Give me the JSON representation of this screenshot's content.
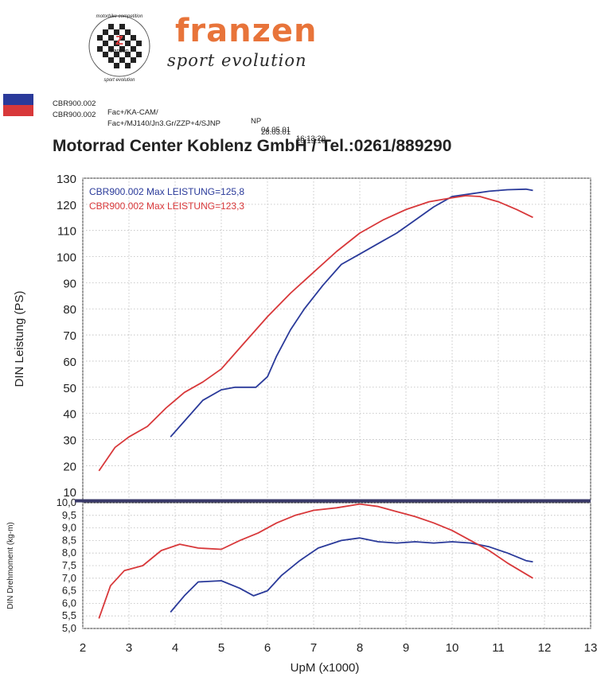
{
  "header": {
    "brand": "franzen",
    "brand_sub": "sport evolution",
    "badge_top": "motorbike competition",
    "badge_bottom": "sport evolution",
    "badge_letter": "Z",
    "badge_name": "franzen"
  },
  "runs": [
    {
      "name": "CBR900.002",
      "desc": "Fac+/KA-CAM/",
      "mode": "NP",
      "date": "04.05.01",
      "time": "16:13:20",
      "color": "#2a3a9a"
    },
    {
      "name": "CBR900.002",
      "desc": "Fac+/MJ140/Jn3.Gr/ZZP+4/SJNP",
      "mode": "",
      "date": "28.03.01",
      "time": "20:19:16",
      "color": "#d8383a"
    }
  ],
  "title": "Motorrad Center Koblenz GmbH / Tel.:0261/889290",
  "chart_data": [
    {
      "type": "line",
      "ylabel": "DIN Leistung (PS)",
      "ylim": [
        7,
        130
      ],
      "xlim": [
        2,
        13
      ],
      "yticks": [
        10,
        20,
        30,
        40,
        50,
        60,
        70,
        80,
        90,
        100,
        110,
        120,
        130
      ],
      "annotations": [
        "CBR900.002  Max LEISTUNG=125,8",
        "CBR900.002  Max LEISTUNG=123,3"
      ],
      "series": [
        {
          "name": "CBR900.002",
          "color": "#2a3a9a",
          "x": [
            3.9,
            4.2,
            4.6,
            5.0,
            5.3,
            5.6,
            5.75,
            6.0,
            6.2,
            6.5,
            6.8,
            7.2,
            7.6,
            8.0,
            8.5,
            8.8,
            9.2,
            9.6,
            10.0,
            10.4,
            10.8,
            11.2,
            11.6,
            11.75
          ],
          "y": [
            31,
            37,
            45,
            49,
            50,
            50,
            50,
            54,
            62,
            72,
            80,
            89,
            97,
            101,
            106,
            109,
            114,
            119,
            123,
            124,
            125,
            125.6,
            125.8,
            125.3
          ]
        },
        {
          "name": "CBR900.002",
          "color": "#d8383a",
          "x": [
            2.35,
            2.7,
            3.0,
            3.4,
            3.8,
            4.2,
            4.6,
            5.0,
            5.5,
            6.0,
            6.5,
            7.0,
            7.5,
            8.0,
            8.5,
            9.0,
            9.5,
            10.0,
            10.3,
            10.6,
            11.0,
            11.4,
            11.75
          ],
          "y": [
            18,
            27,
            31,
            35,
            42,
            48,
            52,
            57,
            67,
            77,
            86,
            94,
            102,
            109,
            114,
            118,
            121,
            122.5,
            123.3,
            123,
            121,
            118,
            115
          ]
        }
      ]
    },
    {
      "type": "line",
      "ylabel": "DIN Drehmoment (kg-m)",
      "ylim": [
        5,
        10
      ],
      "xlim": [
        2,
        13
      ],
      "yticks": [
        "5,0",
        "5,5",
        "6,0",
        "6,5",
        "7,0",
        "7,5",
        "8,0",
        "8,5",
        "9,0",
        "9,5",
        "10,0"
      ],
      "xticks": [
        "2",
        "3",
        "4",
        "5",
        "6",
        "7",
        "8",
        "9",
        "10",
        "11",
        "12",
        "13"
      ],
      "xlabel": "UpM (x1000)",
      "series": [
        {
          "name": "CBR900.002",
          "color": "#2a3a9a",
          "x": [
            3.9,
            4.2,
            4.5,
            5.0,
            5.4,
            5.7,
            6.0,
            6.3,
            6.7,
            7.1,
            7.6,
            8.0,
            8.4,
            8.8,
            9.2,
            9.6,
            10.0,
            10.4,
            10.8,
            11.2,
            11.6,
            11.75
          ],
          "y": [
            5.65,
            6.3,
            6.85,
            6.9,
            6.6,
            6.3,
            6.5,
            7.1,
            7.7,
            8.2,
            8.5,
            8.6,
            8.45,
            8.4,
            8.45,
            8.4,
            8.45,
            8.4,
            8.25,
            8.0,
            7.7,
            7.65
          ]
        },
        {
          "name": "CBR900.002",
          "color": "#d8383a",
          "x": [
            2.35,
            2.6,
            2.9,
            3.3,
            3.7,
            4.1,
            4.5,
            5.0,
            5.4,
            5.8,
            6.2,
            6.6,
            7.0,
            7.5,
            8.0,
            8.4,
            8.8,
            9.2,
            9.6,
            10.0,
            10.4,
            10.8,
            11.2,
            11.75
          ],
          "y": [
            5.4,
            6.7,
            7.3,
            7.5,
            8.1,
            8.35,
            8.2,
            8.15,
            8.5,
            8.8,
            9.2,
            9.5,
            9.7,
            9.8,
            9.95,
            9.85,
            9.65,
            9.45,
            9.2,
            8.9,
            8.5,
            8.1,
            7.6,
            7.0
          ]
        }
      ]
    }
  ]
}
